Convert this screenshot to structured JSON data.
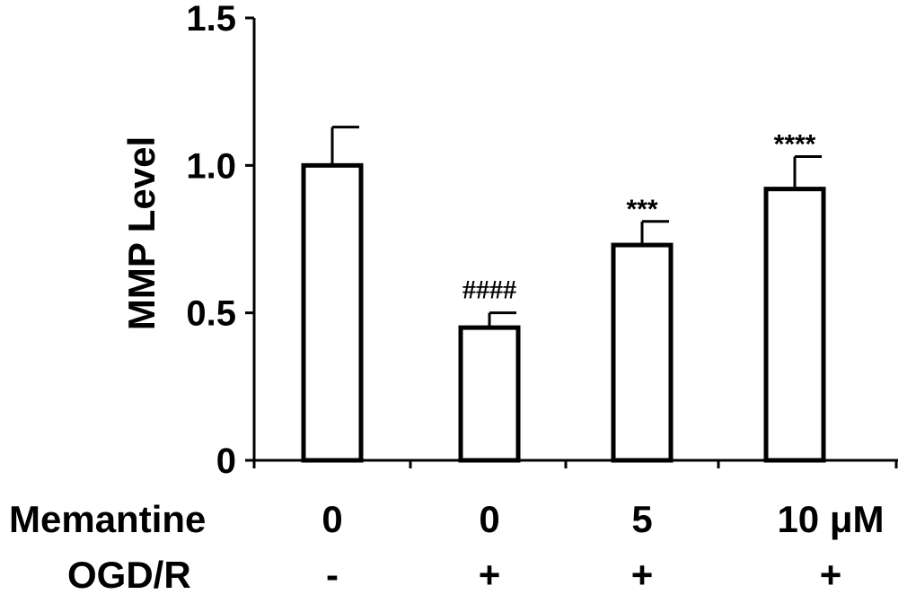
{
  "chart_data": {
    "type": "bar",
    "ylabel": "MMP Level",
    "ylim": [
      0,
      1.5
    ],
    "yticks": [
      "0",
      "0.5",
      "1.0",
      "1.5"
    ],
    "bar_fill": "#ffffff",
    "bar_stroke": "#000000",
    "series": [
      {
        "values": [
          1.0,
          0.45,
          0.73,
          0.92
        ],
        "errors": [
          0.13,
          0.05,
          0.08,
          0.11
        ],
        "annotations": [
          "",
          "####",
          "***",
          "****"
        ]
      }
    ],
    "rows": [
      {
        "label": "Memantine",
        "values": [
          "0",
          "0",
          "5",
          "10 μM"
        ]
      },
      {
        "label": "OGD/R",
        "values": [
          "-",
          "+",
          "+",
          "+"
        ]
      }
    ]
  }
}
